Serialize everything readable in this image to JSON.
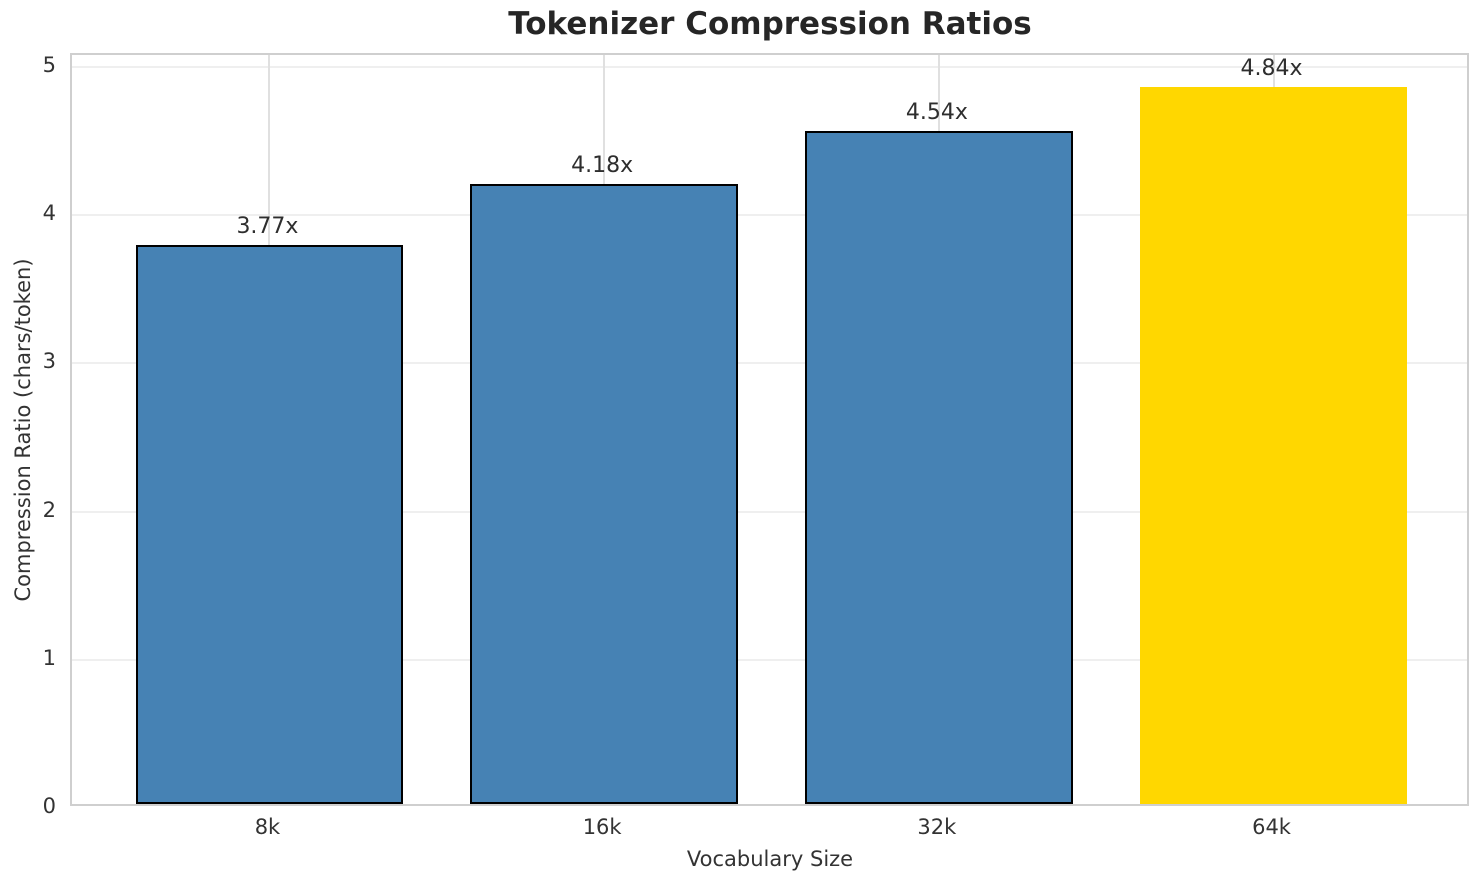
{
  "chart_data": {
    "type": "bar",
    "title": "Tokenizer Compression Ratios",
    "xlabel": "Vocabulary Size",
    "ylabel": "Compression Ratio (chars/token)",
    "categories": [
      "8k",
      "16k",
      "32k",
      "64k"
    ],
    "values": [
      3.77,
      4.18,
      4.54,
      4.84
    ],
    "value_labels": [
      "3.77x",
      "4.18x",
      "4.54x",
      "4.84x"
    ],
    "yticks": [
      0,
      1,
      2,
      3,
      4,
      5
    ],
    "ylim": [
      0,
      5.08
    ],
    "bar_colors": [
      "#4682B4",
      "#4682B4",
      "#4682B4",
      "#FFD700"
    ],
    "bar_edge_colors": [
      "#000000",
      "#000000",
      "#000000",
      "none"
    ],
    "grid": true,
    "legend": "none",
    "highlight_index": 3
  },
  "colors": {
    "bar_blue": "#4682B4",
    "bar_gold": "#FFD700",
    "bar_edge": "#000000",
    "spine": "#cfcfcf",
    "grid_h": "#efefef",
    "grid_v": "#e0e0e0",
    "title_text": "#262626",
    "tick_text": "#333333"
  }
}
